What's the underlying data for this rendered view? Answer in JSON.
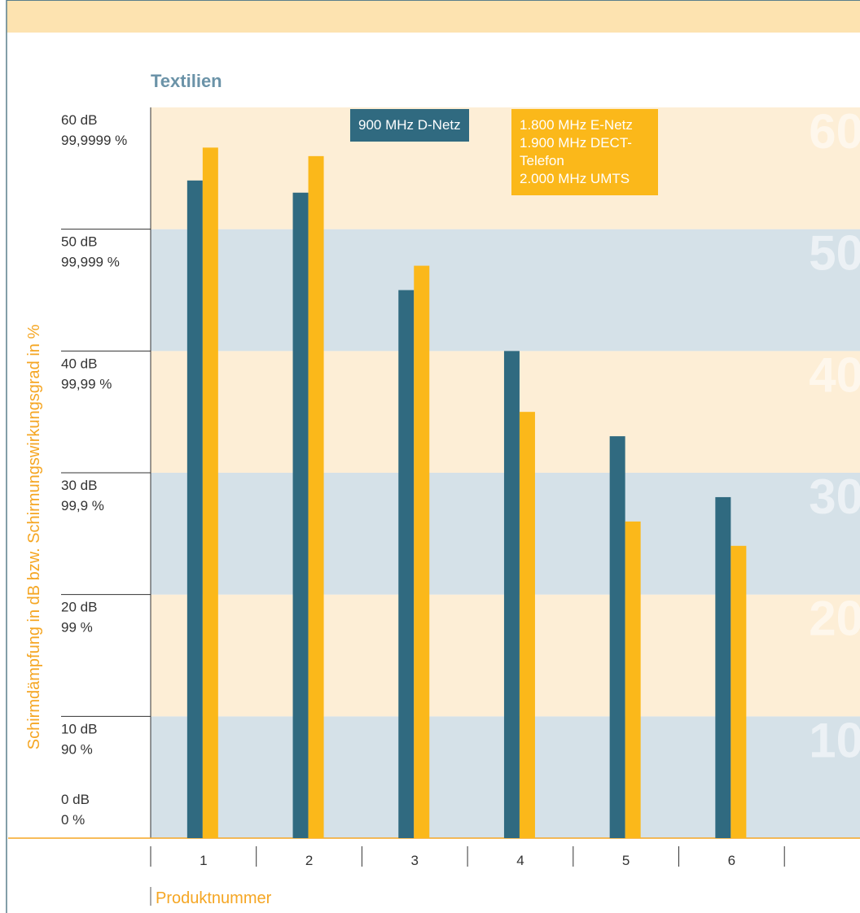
{
  "chart_data": {
    "type": "bar",
    "title": "Textilien",
    "y_label": "Schirmdämpfung in dB bzw. Schirmungswirkungsgrad in %",
    "x_label": "Produktnummer",
    "categories": [
      "1",
      "2",
      "3",
      "4",
      "5",
      "6"
    ],
    "series": [
      {
        "name": "900 MHz D-Netz",
        "color": "#306a80",
        "values": [
          54,
          53,
          45,
          40,
          33,
          28
        ]
      },
      {
        "name": "1.800 MHz E-Netz\n1.900 MHz DECT-Telefon\n2.000 MHz UMTS",
        "color": "#fbb81a",
        "values": [
          56.7,
          56,
          47,
          35,
          26,
          24
        ]
      }
    ],
    "ylim": [
      0,
      60
    ],
    "yticks": [
      {
        "value": 0,
        "label": "0 dB"
      },
      {
        "value": 10,
        "label": "10 dB"
      },
      {
        "value": 20,
        "label": "20 dB"
      },
      {
        "value": 30,
        "label": "30 dB"
      },
      {
        "value": 40,
        "label": "40 dB"
      },
      {
        "value": 50,
        "label": "50 dB"
      },
      {
        "value": 60,
        "label": "60 dB"
      }
    ],
    "ytick_percent_labels": [
      "0 %",
      "90 %",
      "99 %",
      "99,9 %",
      "99,99 %",
      "99,999 %",
      "99,9999 %"
    ]
  }
}
